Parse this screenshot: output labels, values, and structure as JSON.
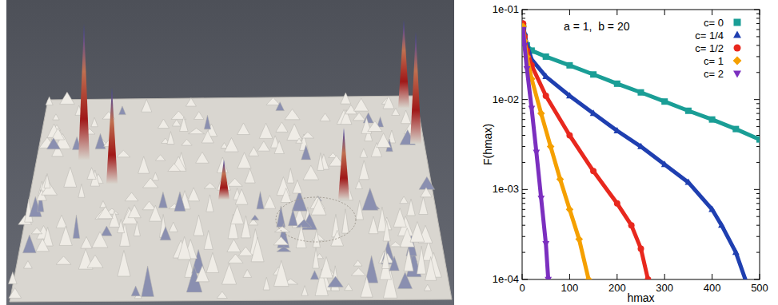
{
  "chart_data": {
    "type": "scatter",
    "annotation": "a = 1,  b = 20",
    "x_label": "hmax",
    "y_label": "F(hmax)",
    "log": "y",
    "grid": false,
    "legend": "top-right",
    "xlim": [
      0,
      500
    ],
    "xticks": [
      0,
      100,
      200,
      300,
      400,
      500
    ],
    "ylim": [
      0.0001,
      0.1
    ],
    "yticks": [
      {
        "value": 0.0001,
        "label": "1e-04"
      },
      {
        "value": 0.001,
        "label": "1e-03"
      },
      {
        "value": 0.01,
        "label": "1e-02"
      },
      {
        "value": 0.1,
        "label": "1e-01"
      }
    ],
    "series": [
      {
        "name": "c= 0",
        "color": "#1a9e96",
        "marker": "square",
        "x": [
          2,
          5,
          10,
          20,
          50,
          100,
          150,
          200,
          250,
          300,
          350,
          400,
          450,
          500
        ],
        "values": [
          0.065,
          0.05,
          0.04,
          0.035,
          0.03,
          0.024,
          0.019,
          0.015,
          0.012,
          0.0095,
          0.0075,
          0.006,
          0.0047,
          0.0036
        ]
      },
      {
        "name": "c= 1/4",
        "color": "#1f3fb0",
        "marker": "triangle-up",
        "x": [
          2,
          5,
          10,
          20,
          50,
          100,
          150,
          200,
          250,
          300,
          350,
          400,
          420,
          450,
          470
        ],
        "values": [
          0.07,
          0.055,
          0.04,
          0.028,
          0.018,
          0.011,
          0.007,
          0.0045,
          0.003,
          0.0019,
          0.0012,
          0.0006,
          0.0004,
          0.0002,
          0.0001
        ]
      },
      {
        "name": "c= 1/2",
        "color": "#e8281e",
        "marker": "circle",
        "x": [
          2,
          5,
          10,
          20,
          50,
          100,
          150,
          200,
          230,
          250,
          265
        ],
        "values": [
          0.07,
          0.05,
          0.035,
          0.024,
          0.011,
          0.004,
          0.0016,
          0.0007,
          0.0004,
          0.00022,
          0.0001
        ]
      },
      {
        "name": "c= 1",
        "color": "#f5a000",
        "marker": "diamond",
        "x": [
          2,
          5,
          10,
          20,
          40,
          60,
          80,
          100,
          120,
          140
        ],
        "values": [
          0.065,
          0.045,
          0.03,
          0.017,
          0.007,
          0.003,
          0.0013,
          0.0006,
          0.00028,
          0.0001
        ]
      },
      {
        "name": "c= 2",
        "color": "#7b2fbf",
        "marker": "triangle-down",
        "x": [
          2,
          5,
          10,
          20,
          30,
          40,
          50,
          55
        ],
        "values": [
          0.06,
          0.04,
          0.022,
          0.008,
          0.0026,
          0.0008,
          0.00025,
          0.0001
        ]
      }
    ]
  }
}
